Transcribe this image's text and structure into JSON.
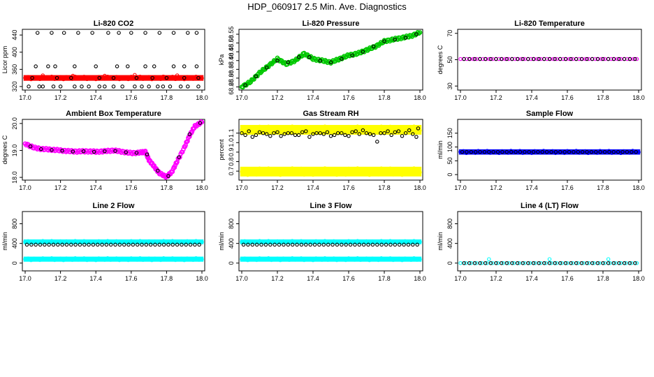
{
  "page": {
    "title": "HDP_060917  2.5 Min. Ave. Diagnostics"
  },
  "chart_data": [
    {
      "id": "co2",
      "type": "scatter",
      "title": "Li-820 CO2",
      "ylabel": "Licor ppm",
      "xlabel": "",
      "xlim": [
        17.0,
        18.0
      ],
      "ylim": [
        315,
        450
      ],
      "xticks": [
        17.0,
        17.2,
        17.4,
        17.6,
        17.8,
        18.0
      ],
      "xtick_labels": [
        "17.0",
        "17.2",
        "17.4",
        "17.6",
        "17.8",
        "18.0"
      ],
      "yticks": [
        320,
        360,
        400,
        440
      ],
      "ytick_labels": [
        "320",
        "360",
        "400",
        "440"
      ],
      "series": [
        {
          "color": "#ff0000",
          "style": "band",
          "filled": true,
          "x_start": 17.0,
          "x_end": 18.0,
          "low": 337,
          "high": 343
        },
        {
          "color": "#ff0000",
          "style": "points",
          "filled": false,
          "x": [
            17.1,
            17.27,
            17.45,
            17.62,
            17.78,
            17.86
          ],
          "y": [
            346,
            345,
            345,
            347,
            343,
            346
          ]
        },
        {
          "color": "#000000",
          "style": "points",
          "filled": false,
          "x": [
            17.02,
            17.08,
            17.1,
            17.16,
            17.2,
            17.28,
            17.32,
            17.36,
            17.42,
            17.45,
            17.5,
            17.55,
            17.62,
            17.66,
            17.7,
            17.75,
            17.78,
            17.82,
            17.88,
            17.92,
            17.98,
            17.07,
            17.15,
            17.22,
            17.3,
            17.38,
            17.47,
            17.53,
            17.6,
            17.68,
            17.76,
            17.84,
            17.92,
            17.97,
            17.06,
            17.13,
            17.17,
            17.28,
            17.4,
            17.52,
            17.58,
            17.68,
            17.73,
            17.84,
            17.9,
            17.97,
            17.04,
            17.18,
            17.26,
            17.42,
            17.5,
            17.63,
            17.72,
            17.8,
            17.9,
            17.98
          ],
          "y": [
            320,
            320,
            320,
            320,
            320,
            320,
            320,
            320,
            320,
            320,
            320,
            320,
            320,
            320,
            320,
            320,
            320,
            320,
            320,
            320,
            320,
            445,
            445,
            445,
            445,
            445,
            445,
            445,
            445,
            445,
            445,
            445,
            445,
            445,
            367,
            367,
            367,
            367,
            367,
            367,
            367,
            367,
            367,
            367,
            367,
            367,
            340,
            340,
            340,
            340,
            340,
            340,
            340,
            340,
            340,
            340
          ]
        }
      ]
    },
    {
      "id": "pressure",
      "type": "scatter",
      "title": "Li-820 Pressure",
      "ylabel": "kPa",
      "xlabel": "",
      "xlim": [
        17.0,
        18.0
      ],
      "ylim": [
        68.24,
        68.57
      ],
      "xticks": [
        17.0,
        17.2,
        17.4,
        17.6,
        17.8,
        18.0
      ],
      "xtick_labels": [
        "17.0",
        "17.2",
        "17.4",
        "17.6",
        "17.8",
        "18.0"
      ],
      "yticks": [
        68.25,
        68.3,
        68.35,
        68.4,
        68.45,
        68.5,
        68.55
      ],
      "ytick_labels": [
        "68.25",
        "68.30",
        "68.35",
        "68.40",
        "68.45",
        "68.50",
        "68.55"
      ],
      "series": [
        {
          "color": "#00c800",
          "style": "trace",
          "filled": false,
          "x": [
            17.0,
            17.05,
            17.1,
            17.15,
            17.2,
            17.25,
            17.3,
            17.35,
            17.4,
            17.45,
            17.5,
            17.55,
            17.6,
            17.65,
            17.7,
            17.75,
            17.8,
            17.85,
            17.9,
            17.95,
            18.0
          ],
          "y": [
            68.25,
            68.28,
            68.33,
            68.37,
            68.41,
            68.38,
            68.4,
            68.44,
            68.41,
            68.4,
            68.39,
            68.41,
            68.43,
            68.44,
            68.46,
            68.48,
            68.51,
            68.52,
            68.53,
            68.54,
            68.56
          ]
        },
        {
          "color": "#000000",
          "style": "points",
          "filled": false,
          "x": [
            17.02,
            17.08,
            17.14,
            17.2,
            17.26,
            17.32,
            17.38,
            17.44,
            17.5,
            17.56,
            17.62,
            17.68,
            17.74,
            17.8,
            17.86,
            17.92,
            17.98
          ],
          "y": [
            68.26,
            68.31,
            68.36,
            68.4,
            68.39,
            68.42,
            68.42,
            68.4,
            68.39,
            68.41,
            68.43,
            68.45,
            68.48,
            68.51,
            68.52,
            68.53,
            68.55
          ]
        }
      ]
    },
    {
      "id": "temperature",
      "type": "scatter",
      "title": "Li-820 Temperature",
      "ylabel": "degrees C",
      "xlabel": "",
      "xlim": [
        17.0,
        18.0
      ],
      "ylim": [
        28,
        72
      ],
      "xticks": [
        17.0,
        17.2,
        17.4,
        17.6,
        17.8,
        18.0
      ],
      "xtick_labels": [
        "17.0",
        "17.2",
        "17.4",
        "17.6",
        "17.8",
        "18.0"
      ],
      "yticks": [
        30,
        50,
        70
      ],
      "ytick_labels": [
        "30",
        "50",
        "70"
      ],
      "series": [
        {
          "color": "#ff00ff",
          "style": "flat",
          "filled": false,
          "x_start": 17.0,
          "x_end": 18.0,
          "y": 50.5,
          "step": 0.018
        },
        {
          "color": "#000000",
          "style": "flat",
          "filled": false,
          "x_start": 17.02,
          "x_end": 17.98,
          "y": 50.5,
          "step": 0.03
        }
      ]
    },
    {
      "id": "ambient",
      "type": "scatter",
      "title": "Ambient Box Temperature",
      "ylabel": "degrees C",
      "xlabel": "",
      "xlim": [
        17.0,
        18.0
      ],
      "ylim": [
        17.95,
        20.1
      ],
      "xticks": [
        17.0,
        17.2,
        17.4,
        17.6,
        17.8,
        18.0
      ],
      "xtick_labels": [
        "17.0",
        "17.2",
        "17.4",
        "17.6",
        "17.8",
        "18.0"
      ],
      "yticks": [
        18.0,
        19.0,
        20.0
      ],
      "ytick_labels": [
        "18.0",
        "19.0",
        "20.0"
      ],
      "series": [
        {
          "color": "#ff00ff",
          "style": "trace",
          "filled": false,
          "x": [
            17.0,
            17.05,
            17.1,
            17.15,
            17.2,
            17.25,
            17.3,
            17.35,
            17.4,
            17.45,
            17.5,
            17.55,
            17.6,
            17.65,
            17.68,
            17.7,
            17.73,
            17.76,
            17.8,
            17.83,
            17.86,
            17.9,
            17.93,
            17.96,
            18.0
          ],
          "y": [
            19.25,
            19.1,
            19.05,
            19.03,
            19.0,
            18.97,
            18.96,
            18.97,
            18.95,
            18.97,
            19.0,
            18.95,
            18.9,
            18.92,
            18.95,
            18.65,
            18.4,
            18.15,
            18.02,
            18.2,
            18.6,
            19.1,
            19.55,
            19.9,
            20.05
          ]
        },
        {
          "color": "#000000",
          "style": "points",
          "filled": false,
          "x": [
            17.03,
            17.09,
            17.15,
            17.21,
            17.27,
            17.33,
            17.39,
            17.45,
            17.51,
            17.57,
            17.63,
            17.69,
            17.75,
            17.81,
            17.87,
            17.93,
            17.99
          ],
          "y": [
            19.15,
            19.05,
            19.02,
            18.99,
            18.96,
            18.97,
            18.95,
            18.97,
            18.98,
            18.93,
            18.91,
            18.85,
            18.25,
            18.05,
            18.75,
            19.6,
            20.02
          ]
        }
      ]
    },
    {
      "id": "rh",
      "type": "scatter",
      "title": "Gas Stream RH",
      "ylabel": "percent",
      "xlabel": "",
      "xlim": [
        17.0,
        18.0
      ],
      "ylim": [
        0.62,
        1.23
      ],
      "xticks": [
        17.0,
        17.2,
        17.4,
        17.6,
        17.8,
        18.0
      ],
      "xtick_labels": [
        "17.0",
        "17.2",
        "17.4",
        "17.6",
        "17.8",
        "18.0"
      ],
      "yticks": [
        0.7,
        0.8,
        0.9,
        1.0,
        1.1
      ],
      "ytick_labels": [
        "0.7",
        "0.8",
        "0.9",
        "1.0",
        "1.1"
      ],
      "series": [
        {
          "color": "#ffff00",
          "style": "band",
          "filled": true,
          "x_start": 17.0,
          "x_end": 18.0,
          "low": 1.1,
          "high": 1.17
        },
        {
          "color": "#ffff00",
          "style": "band",
          "filled": true,
          "x_start": 17.0,
          "x_end": 18.0,
          "low": 0.66,
          "high": 0.73
        },
        {
          "color": "#000000",
          "style": "points",
          "filled": false,
          "x": [
            17.0,
            17.04,
            17.08,
            17.12,
            17.16,
            17.2,
            17.24,
            17.28,
            17.32,
            17.36,
            17.4,
            17.44,
            17.48,
            17.52,
            17.56,
            17.6,
            17.64,
            17.68,
            17.72,
            17.76,
            17.8,
            17.84,
            17.88,
            17.92,
            17.96,
            17.99,
            17.02,
            17.06,
            17.1,
            17.14,
            17.18,
            17.22,
            17.26,
            17.3,
            17.34,
            17.38,
            17.42,
            17.46,
            17.5,
            17.54,
            17.58,
            17.62,
            17.66,
            17.7,
            17.74,
            17.78,
            17.82,
            17.86,
            17.9,
            17.94,
            17.98
          ],
          "y": [
            1.1,
            1.12,
            1.08,
            1.1,
            1.07,
            1.11,
            1.09,
            1.1,
            1.08,
            1.12,
            1.09,
            1.1,
            1.11,
            1.08,
            1.1,
            1.07,
            1.12,
            1.13,
            1.09,
            1.01,
            1.1,
            1.08,
            1.12,
            1.1,
            1.09,
            1.15,
            1.08,
            1.06,
            1.11,
            1.09,
            1.1,
            1.07,
            1.1,
            1.08,
            1.11,
            1.06,
            1.1,
            1.09,
            1.07,
            1.1,
            1.08,
            1.11,
            1.09,
            1.1,
            1.08,
            1.1,
            1.12,
            1.11,
            1.07,
            1.13,
            1.06
          ]
        }
      ]
    },
    {
      "id": "sample",
      "type": "scatter",
      "title": "Sample Flow",
      "ylabel": "ml/min",
      "xlabel": "",
      "xlim": [
        17.0,
        18.0
      ],
      "ylim": [
        -15,
        195
      ],
      "xticks": [
        17.0,
        17.2,
        17.4,
        17.6,
        17.8,
        18.0
      ],
      "xtick_labels": [
        "17.0",
        "17.2",
        "17.4",
        "17.6",
        "17.8",
        "18.0"
      ],
      "yticks": [
        0,
        50,
        100,
        150
      ],
      "ytick_labels": [
        "0",
        "50",
        "100",
        "150"
      ],
      "series": [
        {
          "color": "#0000ff",
          "style": "band",
          "filled": true,
          "x_start": 17.0,
          "x_end": 18.0,
          "low": 78,
          "high": 86
        },
        {
          "color": "#000000",
          "style": "flat",
          "filled": false,
          "x_start": 17.01,
          "x_end": 17.99,
          "y": 82,
          "step": 0.025
        }
      ]
    },
    {
      "id": "line2",
      "type": "scatter",
      "title": "Line 2 Flow",
      "ylabel": "ml/min",
      "xlabel": "",
      "xlim": [
        17.0,
        18.0
      ],
      "ylim": [
        -130,
        1020
      ],
      "xticks": [
        17.0,
        17.2,
        17.4,
        17.6,
        17.8,
        18.0
      ],
      "xtick_labels": [
        "17.0",
        "17.2",
        "17.4",
        "17.6",
        "17.8",
        "18.0"
      ],
      "yticks": [
        0,
        400,
        800
      ],
      "ytick_labels": [
        "0",
        "400",
        "800"
      ],
      "series": [
        {
          "color": "#00ffff",
          "style": "band",
          "filled": true,
          "x_start": 17.0,
          "x_end": 18.0,
          "low": 415,
          "high": 450
        },
        {
          "color": "#00ffff",
          "style": "band",
          "filled": true,
          "x_start": 17.0,
          "x_end": 18.0,
          "low": 60,
          "high": 100
        },
        {
          "color": "#000000",
          "style": "flat",
          "filled": false,
          "x_start": 17.01,
          "x_end": 17.99,
          "y": 375,
          "step": 0.025
        }
      ]
    },
    {
      "id": "line3",
      "type": "scatter",
      "title": "Line 3 Flow",
      "ylabel": "ml/min",
      "xlabel": "",
      "xlim": [
        17.0,
        18.0
      ],
      "ylim": [
        -130,
        1020
      ],
      "xticks": [
        17.0,
        17.2,
        17.4,
        17.6,
        17.8,
        18.0
      ],
      "xtick_labels": [
        "17.0",
        "17.2",
        "17.4",
        "17.6",
        "17.8",
        "18.0"
      ],
      "yticks": [
        0,
        400,
        800
      ],
      "ytick_labels": [
        "0",
        "400",
        "800"
      ],
      "series": [
        {
          "color": "#00ffff",
          "style": "band",
          "filled": true,
          "x_start": 17.0,
          "x_end": 18.0,
          "low": 415,
          "high": 450
        },
        {
          "color": "#00ffff",
          "style": "band",
          "filled": true,
          "x_start": 17.0,
          "x_end": 18.0,
          "low": 60,
          "high": 100
        },
        {
          "color": "#000000",
          "style": "flat",
          "filled": false,
          "x_start": 17.01,
          "x_end": 17.99,
          "y": 375,
          "step": 0.025
        }
      ]
    },
    {
      "id": "line4",
      "type": "scatter",
      "title": "Line 4 (LT) Flow",
      "ylabel": "ml/min",
      "xlabel": "",
      "xlim": [
        17.0,
        18.0
      ],
      "ylim": [
        -130,
        1020
      ],
      "xticks": [
        17.0,
        17.2,
        17.4,
        17.6,
        17.8,
        18.0
      ],
      "xtick_labels": [
        "17.0",
        "17.2",
        "17.4",
        "17.6",
        "17.8",
        "18.0"
      ],
      "yticks": [
        0,
        400,
        800
      ],
      "ytick_labels": [
        "0",
        "400",
        "800"
      ],
      "series": [
        {
          "color": "#00ffff",
          "style": "flat",
          "filled": false,
          "x_start": 17.0,
          "x_end": 18.0,
          "y": 0,
          "step": 0.03
        },
        {
          "color": "#000000",
          "style": "flat",
          "filled": false,
          "x_start": 17.02,
          "x_end": 17.98,
          "y": 0,
          "step": 0.03
        },
        {
          "color": "#00ffff",
          "style": "points",
          "filled": false,
          "x": [
            17.16,
            17.5,
            17.83
          ],
          "y": [
            80,
            80,
            80
          ]
        }
      ]
    }
  ]
}
